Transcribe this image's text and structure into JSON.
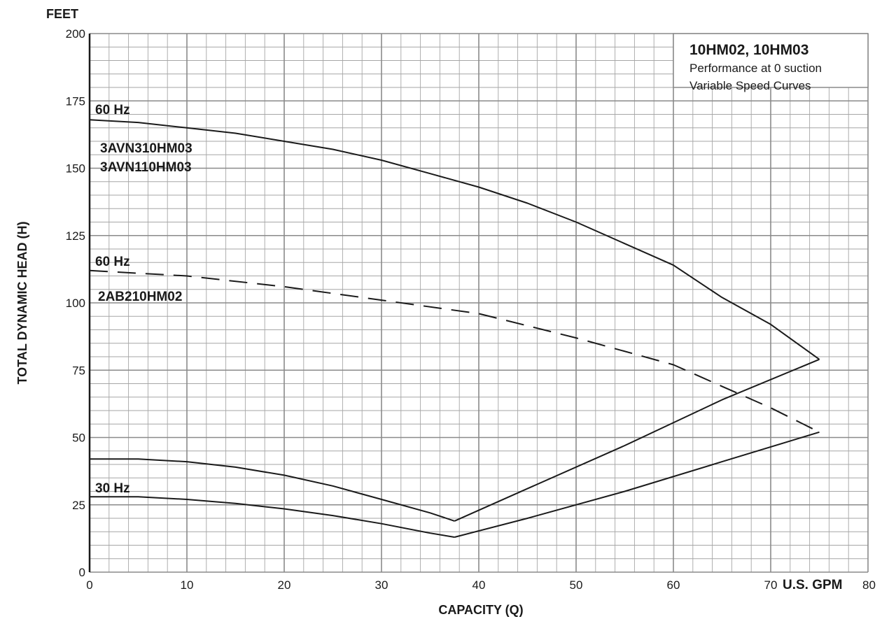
{
  "chart_data": {
    "type": "line",
    "legend_box": {
      "title": "10HM02, 10HM03",
      "line1": "Performance at 0 suction",
      "line2": "Variable Speed Curves"
    },
    "y_unit_label": "FEET",
    "ylabel": "TOTAL DYNAMIC HEAD (H)",
    "xlabel": "CAPACITY (Q)",
    "x_unit_label": "U.S. GPM",
    "xlim": [
      0,
      80
    ],
    "ylim": [
      0,
      200
    ],
    "x_ticks": [
      0,
      10,
      20,
      30,
      40,
      50,
      60,
      70,
      80
    ],
    "y_ticks": [
      0,
      25,
      50,
      75,
      100,
      125,
      150,
      175,
      200
    ],
    "grid": true,
    "annotations": {
      "hz60_upper": "60 Hz",
      "model_a": "3AVN310HM03",
      "model_b": "3AVN110HM03",
      "hz60_lower": "60 Hz",
      "model_c": "2AB210HM02",
      "hz30": "30 Hz"
    },
    "series": [
      {
        "style": "solid",
        "x": [
          0,
          5,
          10,
          15,
          20,
          25,
          30,
          35,
          40,
          45,
          50,
          55,
          60,
          65,
          70,
          75
        ],
        "y": [
          168,
          167,
          165,
          163,
          160,
          157,
          153,
          148,
          143,
          137,
          130,
          122,
          114,
          102,
          92,
          79
        ]
      },
      {
        "style": "solid",
        "x": [
          0,
          5,
          10,
          15,
          20,
          25,
          30,
          35,
          37.5
        ],
        "y": [
          42,
          42,
          41,
          39,
          36,
          32,
          27,
          22,
          19
        ]
      },
      {
        "style": "solid",
        "x": [
          37.5,
          45,
          55,
          65,
          75
        ],
        "y": [
          19,
          31,
          47,
          64,
          79
        ]
      },
      {
        "style": "dashed",
        "x": [
          0,
          10,
          20,
          30,
          40,
          50,
          60,
          65,
          70,
          75
        ],
        "y": [
          112,
          110,
          106,
          101,
          96,
          87,
          77,
          69,
          61,
          52
        ]
      },
      {
        "style": "solid",
        "x": [
          0,
          5,
          10,
          15,
          20,
          25,
          30,
          35,
          37.5
        ],
        "y": [
          28,
          28,
          27,
          25.5,
          23.5,
          21,
          18,
          14.5,
          13
        ]
      },
      {
        "style": "solid",
        "x": [
          37.5,
          45,
          55,
          65,
          75
        ],
        "y": [
          13,
          20,
          30,
          41,
          52
        ]
      }
    ]
  }
}
